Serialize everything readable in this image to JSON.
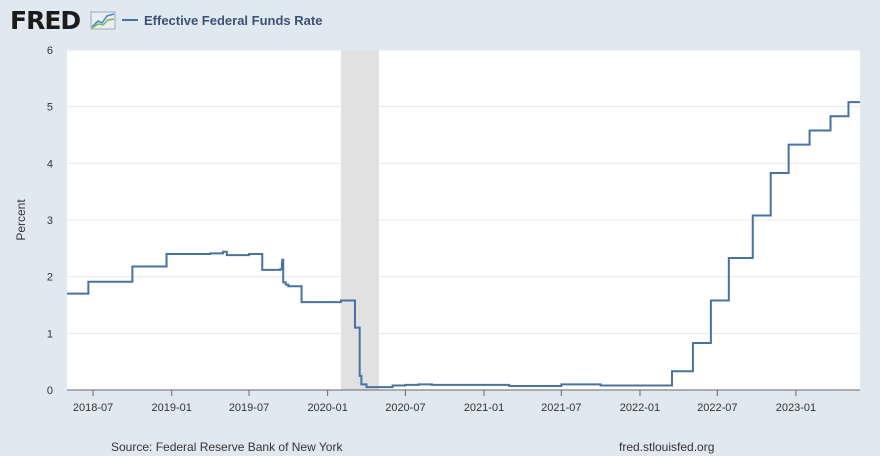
{
  "header": {
    "logo_text": "FRED",
    "logo_icon": "fred-graph-icon",
    "legend_label": "Effective Federal Funds Rate"
  },
  "colors": {
    "series": "#4572a7",
    "background": "#e1e9f0",
    "plot_background": "#ffffff",
    "recession": "#e1e1e1"
  },
  "footer": {
    "source": "Source: Federal Reserve Bank of New York",
    "site": "fred.stlouisfed.org"
  },
  "chart_data": {
    "type": "line",
    "title": "",
    "xlabel": "",
    "ylabel": "Percent",
    "ylim": [
      0,
      6
    ],
    "xlim": [
      "2018-05-01",
      "2023-05-31"
    ],
    "yticks": [
      0,
      1,
      2,
      3,
      4,
      5,
      6
    ],
    "xticks": [
      "2018-07",
      "2019-01",
      "2019-07",
      "2020-01",
      "2020-07",
      "2021-01",
      "2021-07",
      "2022-01",
      "2022-07",
      "2023-01"
    ],
    "grid": true,
    "legend": "top-left",
    "recession_shading": [
      [
        "2020-02-01",
        "2020-04-30"
      ]
    ],
    "series": [
      {
        "name": "Effective Federal Funds Rate",
        "x": [
          "2018-05-01",
          "2018-06-14",
          "2018-06-20",
          "2018-09-26",
          "2018-10-01",
          "2018-12-20",
          "2019-03-01",
          "2019-04-01",
          "2019-05-01",
          "2019-05-10",
          "2019-06-01",
          "2019-07-01",
          "2019-08-01",
          "2019-09-12",
          "2019-09-16",
          "2019-09-17",
          "2019-09-19",
          "2019-09-25",
          "2019-10-01",
          "2019-10-31",
          "2019-11-01",
          "2020-01-01",
          "2020-02-01",
          "2020-03-03",
          "2020-03-05",
          "2020-03-16",
          "2020-03-20",
          "2020-04-01",
          "2020-05-01",
          "2020-06-01",
          "2020-07-01",
          "2020-08-01",
          "2020-09-01",
          "2021-01-01",
          "2021-03-01",
          "2021-06-17",
          "2021-07-01",
          "2021-10-01",
          "2022-01-01",
          "2022-03-17",
          "2022-05-05",
          "2022-06-16",
          "2022-07-28",
          "2022-09-22",
          "2022-11-03",
          "2022-12-15",
          "2023-02-02",
          "2023-03-23",
          "2023-05-04",
          "2023-05-31"
        ],
        "values": [
          1.7,
          1.7,
          1.91,
          1.91,
          2.18,
          2.4,
          2.4,
          2.41,
          2.44,
          2.38,
          2.38,
          2.4,
          2.12,
          2.13,
          2.25,
          2.3,
          1.9,
          1.86,
          1.83,
          1.83,
          1.55,
          1.55,
          1.58,
          1.58,
          1.1,
          0.25,
          0.1,
          0.05,
          0.05,
          0.08,
          0.09,
          0.1,
          0.09,
          0.09,
          0.07,
          0.07,
          0.1,
          0.08,
          0.08,
          0.33,
          0.83,
          1.58,
          2.33,
          3.08,
          3.83,
          4.33,
          4.58,
          4.83,
          5.08,
          5.08
        ]
      }
    ]
  }
}
